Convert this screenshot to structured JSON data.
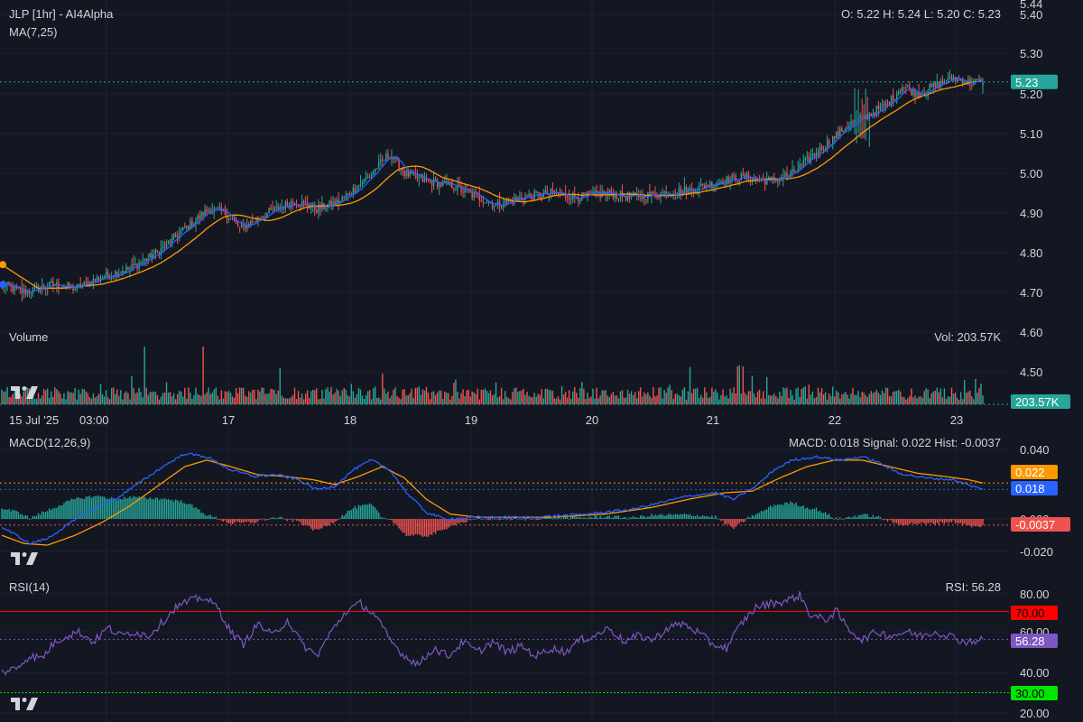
{
  "header": {
    "title": "JLP [1hr] - AI4Alpha",
    "ma_label": "MA(7,25)",
    "ohlc": "O: 5.22 H: 5.24 L: 5.20 C: 5.23"
  },
  "volume_panel": {
    "label": "Volume",
    "readout": "Vol: 203.57K",
    "tag": "203.57K"
  },
  "macd_panel": {
    "label": "MACD(12,26,9)",
    "readout": "MACD: 0.018 Signal: 0.022 Hist: -0.0037"
  },
  "rsi_panel": {
    "label": "RSI(14)",
    "readout": "RSI: 56.28"
  },
  "price_tag": "5.23",
  "colors": {
    "background": "#131722",
    "grid": "#1e2230",
    "text": "#d1d4dc",
    "up": "#26a69a",
    "down": "#ef5350",
    "ma_fast": "#2962ff",
    "ma_slow": "#ff9800",
    "macd": "#2962ff",
    "signal": "#ff9800",
    "rsi": "#7e57c2",
    "rsi_upper": "#ff0000",
    "rsi_lower": "#00e600"
  },
  "chart_data": [
    {
      "type": "candlestick",
      "title": "JLP [1hr] - AI4Alpha",
      "x_tick_labels": [
        "15 Jul '25",
        "03:00",
        "17",
        "18",
        "19",
        "20",
        "21",
        "22",
        "23"
      ],
      "y_tick_labels": [
        "5.44",
        "5.40",
        "5.30",
        "5.20",
        "5.10",
        "5.00",
        "4.90",
        "4.80",
        "4.70",
        "4.60",
        "4.50"
      ],
      "ylim": [
        4.44,
        5.44
      ],
      "last": {
        "open": 5.22,
        "high": 5.24,
        "low": 5.2,
        "close": 5.23
      },
      "close_path": [
        [
          0,
          4.72
        ],
        [
          12,
          4.7
        ],
        [
          28,
          4.72
        ],
        [
          40,
          4.71
        ],
        [
          55,
          4.74
        ],
        [
          70,
          4.76
        ],
        [
          85,
          4.8
        ],
        [
          100,
          4.86
        ],
        [
          113,
          4.91
        ],
        [
          122,
          4.9
        ],
        [
          130,
          4.86
        ],
        [
          145,
          4.9
        ],
        [
          160,
          4.93
        ],
        [
          172,
          4.91
        ],
        [
          185,
          4.93
        ],
        [
          200,
          4.99
        ],
        [
          212,
          5.05
        ],
        [
          220,
          5.0
        ],
        [
          232,
          4.98
        ],
        [
          245,
          4.97
        ],
        [
          255,
          4.95
        ],
        [
          270,
          4.92
        ],
        [
          285,
          4.94
        ],
        [
          300,
          4.95
        ],
        [
          315,
          4.94
        ],
        [
          330,
          4.95
        ],
        [
          345,
          4.94
        ],
        [
          362,
          4.95
        ],
        [
          378,
          4.96
        ],
        [
          392,
          4.98
        ],
        [
          405,
          4.99
        ],
        [
          420,
          4.98
        ],
        [
          432,
          5.0
        ],
        [
          447,
          5.06
        ],
        [
          462,
          5.12
        ],
        [
          475,
          5.15
        ],
        [
          485,
          5.18
        ],
        [
          492,
          5.22
        ],
        [
          500,
          5.2
        ],
        [
          510,
          5.22
        ],
        [
          520,
          5.24
        ],
        [
          528,
          5.23
        ],
        [
          536,
          5.23
        ]
      ],
      "ma_fast_name": "MA 7",
      "ma_slow_name": "MA 25",
      "ma_fast_start": 4.72,
      "ma_slow_start": 4.77
    },
    {
      "type": "bar",
      "title": "Volume",
      "last_value": "203.57K"
    },
    {
      "type": "line",
      "title": "MACD(12,26,9)",
      "y_tick_labels": [
        "0.040",
        "0.020",
        "0.000",
        "-0.020"
      ],
      "ylim": [
        -0.028,
        0.045
      ],
      "series": [
        {
          "name": "MACD",
          "last": 0.018
        },
        {
          "name": "Signal",
          "last": 0.022
        },
        {
          "name": "Hist",
          "last": -0.0037
        }
      ],
      "macd_path": [
        [
          0,
          -0.005
        ],
        [
          8,
          -0.01
        ],
        [
          15,
          -0.015
        ],
        [
          25,
          -0.012
        ],
        [
          38,
          -0.002
        ],
        [
          50,
          0.006
        ],
        [
          62,
          0.012
        ],
        [
          75,
          0.022
        ],
        [
          88,
          0.032
        ],
        [
          100,
          0.04
        ],
        [
          112,
          0.038
        ],
        [
          125,
          0.03
        ],
        [
          138,
          0.026
        ],
        [
          150,
          0.027
        ],
        [
          162,
          0.024
        ],
        [
          172,
          0.018
        ],
        [
          182,
          0.02
        ],
        [
          192,
          0.03
        ],
        [
          202,
          0.036
        ],
        [
          212,
          0.03
        ],
        [
          222,
          0.015
        ],
        [
          232,
          0.004
        ],
        [
          242,
          0.0
        ],
        [
          260,
          0.001
        ],
        [
          290,
          0.001
        ],
        [
          320,
          0.003
        ],
        [
          345,
          0.006
        ],
        [
          360,
          0.01
        ],
        [
          375,
          0.014
        ],
        [
          390,
          0.016
        ],
        [
          400,
          0.012
        ],
        [
          412,
          0.02
        ],
        [
          422,
          0.03
        ],
        [
          432,
          0.036
        ],
        [
          445,
          0.038
        ],
        [
          458,
          0.036
        ],
        [
          470,
          0.038
        ],
        [
          478,
          0.035
        ],
        [
          490,
          0.028
        ],
        [
          505,
          0.025
        ],
        [
          520,
          0.024
        ],
        [
          530,
          0.02
        ],
        [
          536,
          0.018
        ]
      ],
      "signal_path": [
        [
          0,
          -0.01
        ],
        [
          12,
          -0.015
        ],
        [
          25,
          -0.016
        ],
        [
          40,
          -0.01
        ],
        [
          55,
          -0.002
        ],
        [
          70,
          0.008
        ],
        [
          85,
          0.02
        ],
        [
          100,
          0.032
        ],
        [
          112,
          0.036
        ],
        [
          125,
          0.032
        ],
        [
          140,
          0.027
        ],
        [
          155,
          0.026
        ],
        [
          170,
          0.024
        ],
        [
          182,
          0.021
        ],
        [
          195,
          0.026
        ],
        [
          208,
          0.032
        ],
        [
          220,
          0.025
        ],
        [
          232,
          0.012
        ],
        [
          245,
          0.003
        ],
        [
          260,
          0.001
        ],
        [
          300,
          0.001
        ],
        [
          330,
          0.003
        ],
        [
          355,
          0.007
        ],
        [
          375,
          0.012
        ],
        [
          395,
          0.016
        ],
        [
          410,
          0.017
        ],
        [
          425,
          0.025
        ],
        [
          440,
          0.032
        ],
        [
          455,
          0.036
        ],
        [
          470,
          0.036
        ],
        [
          485,
          0.032
        ],
        [
          500,
          0.028
        ],
        [
          515,
          0.026
        ],
        [
          528,
          0.024
        ],
        [
          536,
          0.022
        ]
      ]
    },
    {
      "type": "line",
      "title": "RSI(14)",
      "y_tick_labels": [
        "80.00",
        "60.00",
        "40.00",
        "20.00"
      ],
      "ylim": [
        18,
        87
      ],
      "levels": [
        70,
        30
      ],
      "series": [
        {
          "name": "RSI",
          "last": 56.28
        }
      ],
      "path": [
        [
          0,
          40
        ],
        [
          8,
          42
        ],
        [
          15,
          48
        ],
        [
          22,
          47
        ],
        [
          28,
          54
        ],
        [
          35,
          58
        ],
        [
          42,
          60
        ],
        [
          50,
          55
        ],
        [
          58,
          62
        ],
        [
          65,
          58
        ],
        [
          72,
          60
        ],
        [
          80,
          58
        ],
        [
          88,
          65
        ],
        [
          95,
          72
        ],
        [
          102,
          75
        ],
        [
          110,
          77
        ],
        [
          118,
          72
        ],
        [
          125,
          60
        ],
        [
          132,
          54
        ],
        [
          140,
          64
        ],
        [
          148,
          58
        ],
        [
          156,
          66
        ],
        [
          164,
          54
        ],
        [
          172,
          48
        ],
        [
          180,
          60
        ],
        [
          188,
          70
        ],
        [
          196,
          74
        ],
        [
          204,
          68
        ],
        [
          212,
          56
        ],
        [
          220,
          48
        ],
        [
          228,
          44
        ],
        [
          236,
          52
        ],
        [
          244,
          48
        ],
        [
          252,
          55
        ],
        [
          260,
          50
        ],
        [
          268,
          55
        ],
        [
          276,
          50
        ],
        [
          284,
          53
        ],
        [
          292,
          48
        ],
        [
          300,
          52
        ],
        [
          308,
          50
        ],
        [
          316,
          56
        ],
        [
          324,
          58
        ],
        [
          332,
          62
        ],
        [
          340,
          55
        ],
        [
          348,
          58
        ],
        [
          356,
          56
        ],
        [
          364,
          62
        ],
        [
          372,
          64
        ],
        [
          380,
          60
        ],
        [
          388,
          54
        ],
        [
          396,
          52
        ],
        [
          404,
          64
        ],
        [
          412,
          72
        ],
        [
          420,
          74
        ],
        [
          428,
          75
        ],
        [
          436,
          78
        ],
        [
          442,
          68
        ],
        [
          450,
          66
        ],
        [
          456,
          70
        ],
        [
          462,
          62
        ],
        [
          470,
          56
        ],
        [
          478,
          60
        ],
        [
          486,
          58
        ],
        [
          494,
          60
        ],
        [
          502,
          58
        ],
        [
          510,
          60
        ],
        [
          518,
          58
        ],
        [
          526,
          55
        ],
        [
          536,
          56
        ]
      ]
    }
  ]
}
